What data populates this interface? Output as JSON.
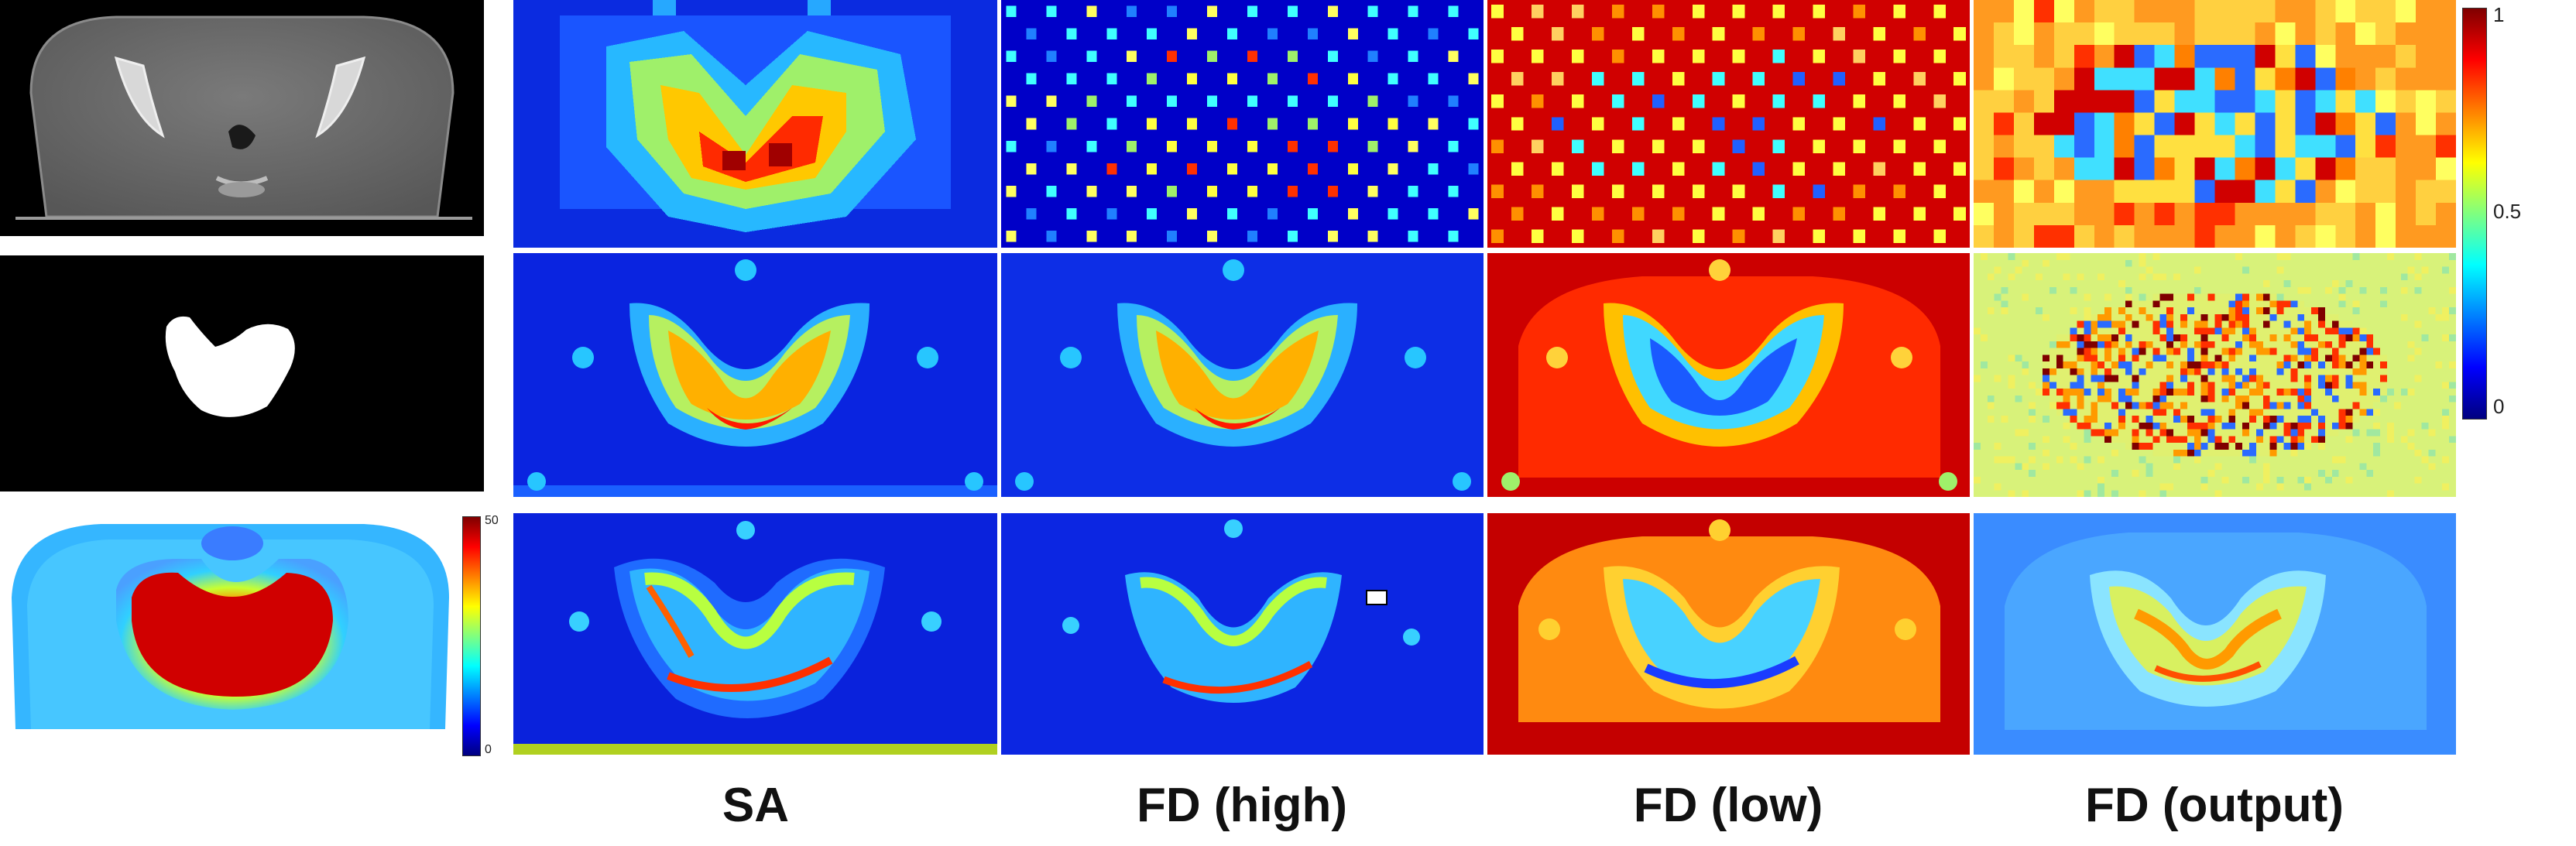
{
  "columns": [
    {
      "name": "SA",
      "label": "SA"
    },
    {
      "name": "FD (high)",
      "label": "FD (high)"
    },
    {
      "name": "FD (low)",
      "label": "FD (low)"
    },
    {
      "name": "FD (output)",
      "label": "FD (output)"
    }
  ],
  "colorbar_main": {
    "ticks": [
      "1",
      "0.5",
      "0"
    ],
    "colormap": "jet",
    "range": [
      0,
      1
    ]
  },
  "colorbar_dose": {
    "ticks": [
      "50",
      "0"
    ],
    "colormap": "jet",
    "range": [
      0,
      50
    ]
  },
  "colors": {
    "jet_dark_blue": "#00007f",
    "jet_blue": "#0000ff",
    "jet_cyan": "#00ffff",
    "jet_yellow": "#ffff00",
    "jet_red": "#ff0000",
    "jet_dark_red": "#7f0000",
    "ct_gray": "#6a6a6a",
    "background": "#000000"
  }
}
